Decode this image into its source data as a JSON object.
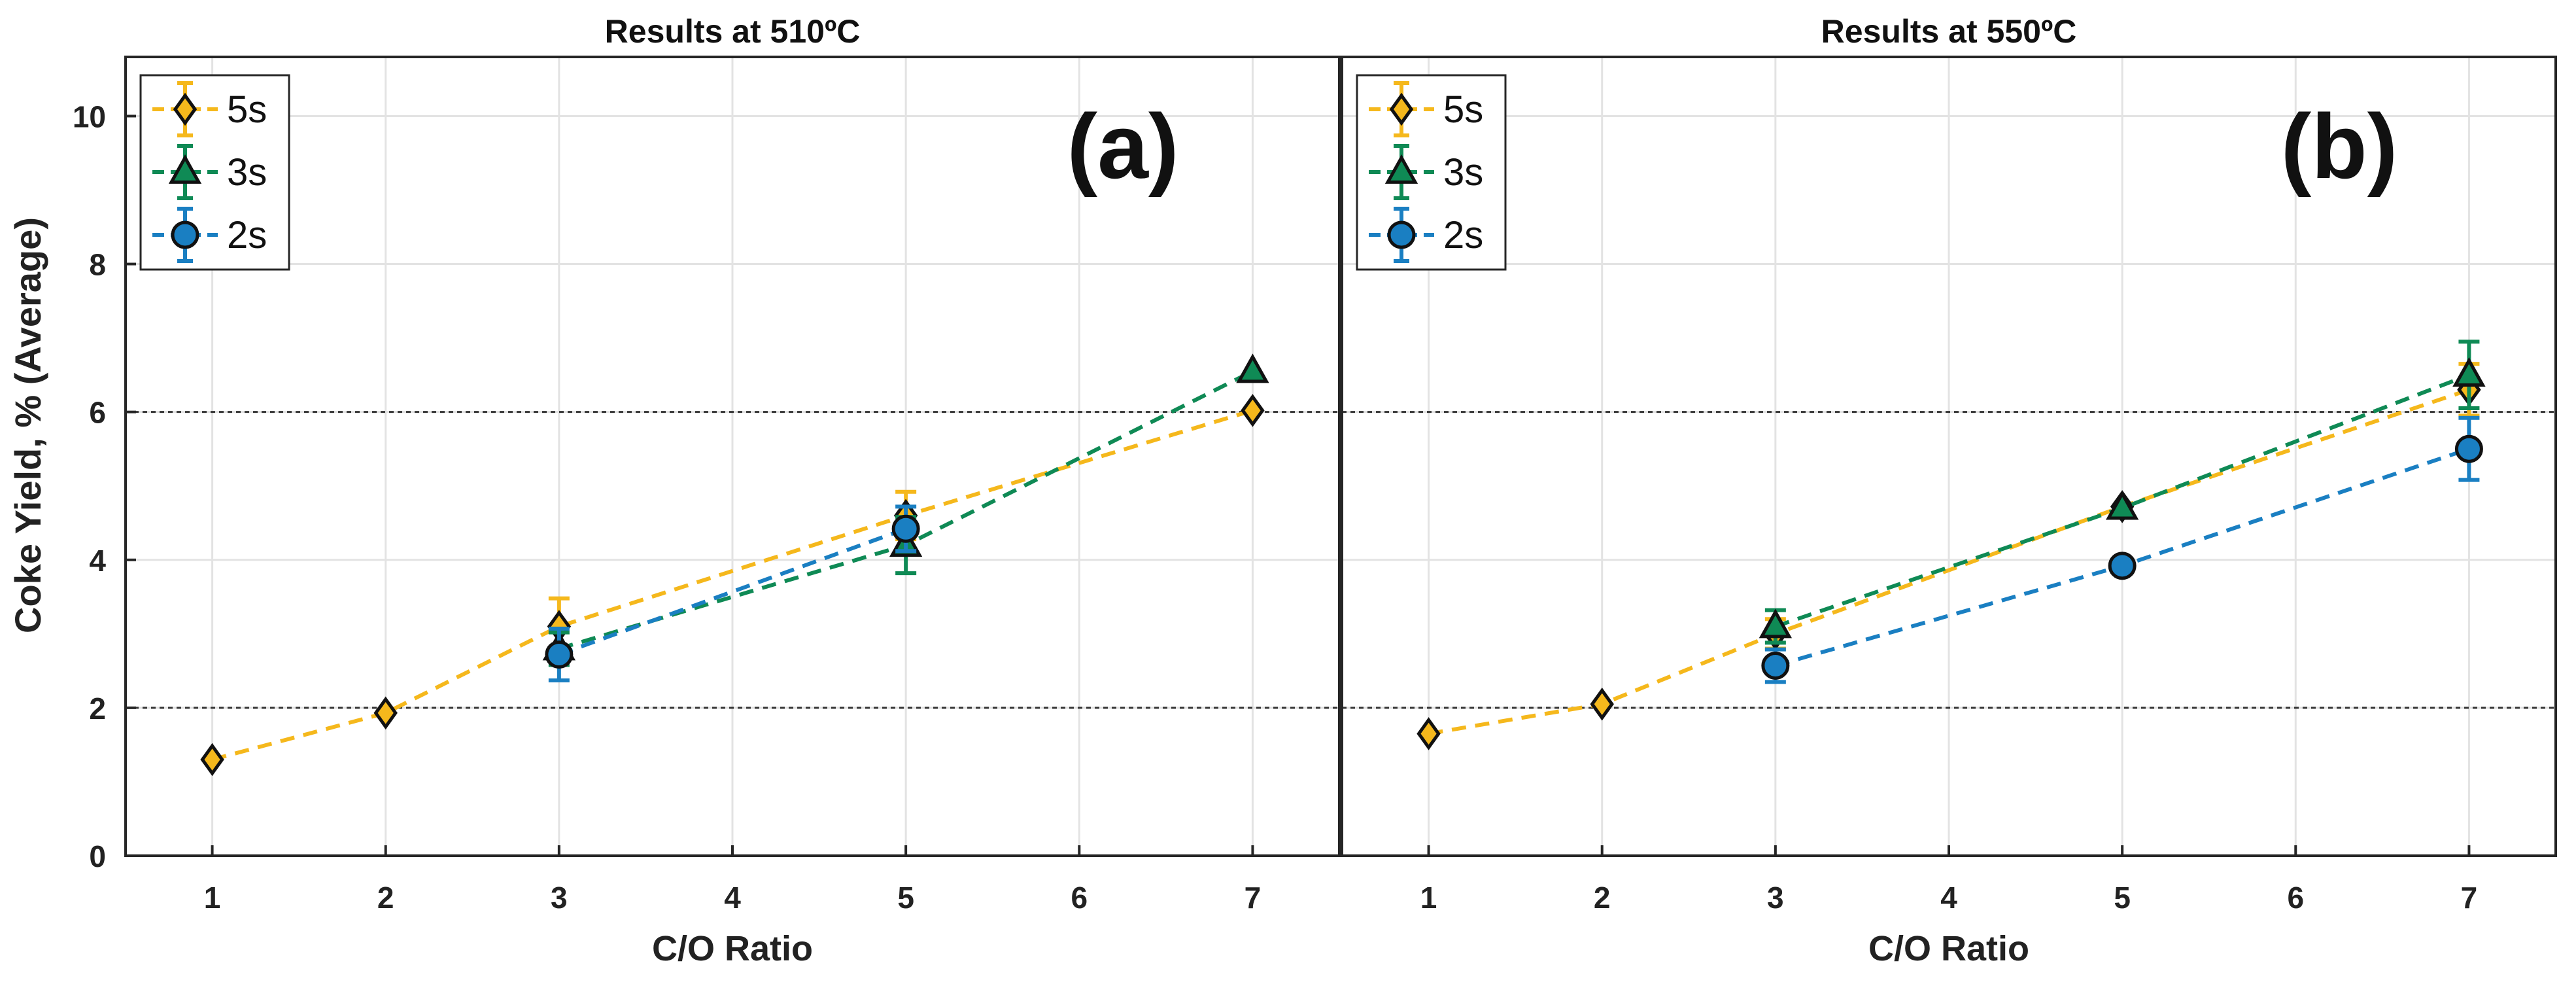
{
  "ylabel": "Coke Yield, % (Average)",
  "chart_data": [
    {
      "type": "line",
      "title": "Results at 510ºC",
      "panel_label": "(a)",
      "xlabel": "C/O Ratio",
      "ylabel": "Coke Yield, % (Average)",
      "xlim": [
        0.5,
        7.5
      ],
      "ylim": [
        0,
        10.8
      ],
      "xticks": [
        "1",
        "2",
        "3",
        "4",
        "5",
        "6",
        "7"
      ],
      "yticks": [
        "0",
        "2",
        "4",
        "6",
        "8",
        "10"
      ],
      "reference_lines": [
        2,
        6
      ],
      "grid": true,
      "legend_position": "top-left",
      "series": [
        {
          "name": "5s",
          "color": "#f5b81c",
          "marker": "diamond",
          "x": [
            1,
            2,
            3,
            5,
            7
          ],
          "y": [
            1.3,
            1.93,
            3.1,
            4.6,
            6.02
          ],
          "err": [
            0,
            0,
            0.38,
            0.32,
            0
          ]
        },
        {
          "name": "3s",
          "color": "#0f8a55",
          "marker": "triangle",
          "x": [
            3,
            5,
            7
          ],
          "y": [
            2.8,
            4.2,
            6.55
          ],
          "err": [
            0.22,
            0.38,
            0
          ]
        },
        {
          "name": "2s",
          "color": "#1a7fc2",
          "marker": "circle",
          "x": [
            3,
            5
          ],
          "y": [
            2.72,
            4.42
          ],
          "err": [
            0.35,
            0.3
          ]
        }
      ]
    },
    {
      "type": "line",
      "title": "Results at 550ºC",
      "panel_label": "(b)",
      "xlabel": "C/O Ratio",
      "ylabel": "",
      "xlim": [
        0.5,
        7.5
      ],
      "ylim": [
        0,
        10.8
      ],
      "xticks": [
        "1",
        "2",
        "3",
        "4",
        "5",
        "6",
        "7"
      ],
      "yticks": [],
      "reference_lines": [
        2,
        6
      ],
      "grid": true,
      "legend_position": "top-left",
      "series": [
        {
          "name": "5s",
          "color": "#f5b81c",
          "marker": "diamond",
          "x": [
            1,
            2,
            3,
            5,
            7
          ],
          "y": [
            1.65,
            2.05,
            3.0,
            4.72,
            6.3
          ],
          "err": [
            0,
            0,
            0.2,
            0,
            0.35
          ]
        },
        {
          "name": "3s",
          "color": "#0f8a55",
          "marker": "triangle",
          "x": [
            3,
            5,
            7
          ],
          "y": [
            3.1,
            4.7,
            6.5
          ],
          "err": [
            0.22,
            0,
            0.45
          ]
        },
        {
          "name": "2s",
          "color": "#1a7fc2",
          "marker": "circle",
          "x": [
            3,
            5,
            7
          ],
          "y": [
            2.57,
            3.92,
            5.5
          ],
          "err": [
            0.22,
            0,
            0.42
          ]
        }
      ]
    }
  ]
}
